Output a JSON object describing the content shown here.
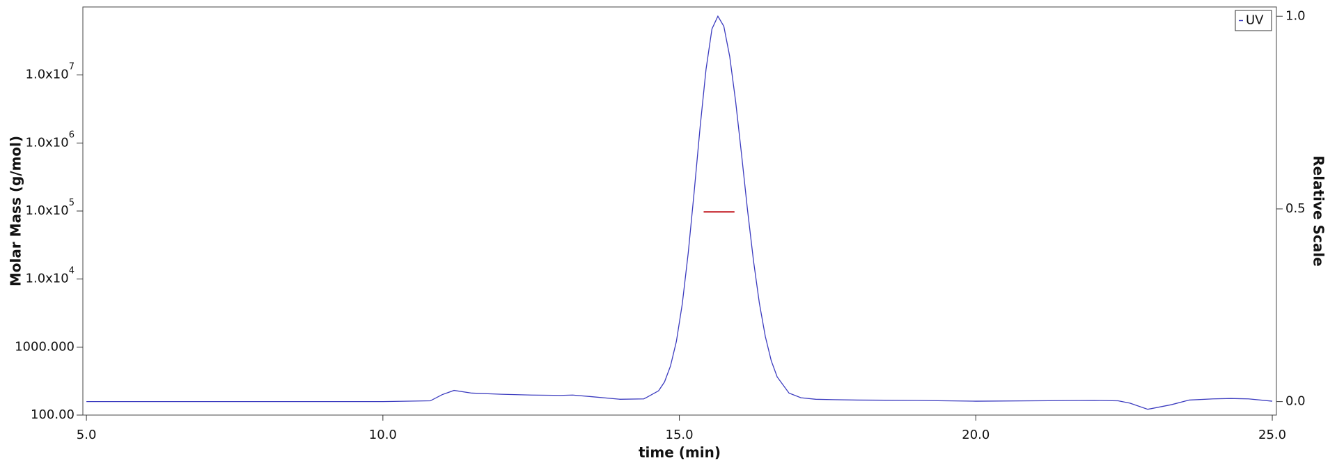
{
  "chart_data": {
    "type": "line",
    "xlabel": "time (min)",
    "ylabel": "Molar Mass (g/mol)",
    "y2label": "Relative Scale",
    "xlim": [
      4.94,
      25.07
    ],
    "xticks": [
      {
        "value": 5,
        "label": "5.0"
      },
      {
        "value": 10,
        "label": "10.0"
      },
      {
        "value": 15,
        "label": "15.0"
      },
      {
        "value": 20,
        "label": "20.0"
      },
      {
        "value": 25,
        "label": "25.0"
      }
    ],
    "ylim": [
      100,
      100000000
    ],
    "yscale": "log",
    "yticks": [
      {
        "value": 100,
        "label": "100.00"
      },
      {
        "value": 1000,
        "label": "1000.000"
      },
      {
        "value": 10000,
        "label": "1.0x10",
        "sup": "4"
      },
      {
        "value": 100000,
        "label": "1.0x10",
        "sup": "5"
      },
      {
        "value": 1000000,
        "label": "1.0x10",
        "sup": "6"
      },
      {
        "value": 10000000,
        "label": "1.0x10",
        "sup": "7"
      }
    ],
    "y2lim": [
      -0.035,
      1.024
    ],
    "y2ticks": [
      {
        "value": 0,
        "label": "0.0"
      },
      {
        "value": 0.5,
        "label": "0.5"
      },
      {
        "value": 1,
        "label": "1.0"
      }
    ],
    "legend": "upper right",
    "series": [
      {
        "name": "UV",
        "color": "#3b3bbf",
        "axis": "y2",
        "x": [
          5,
          10,
          10.8,
          11.0,
          11.2,
          11.5,
          12,
          12.5,
          13,
          13.2,
          13.5,
          14,
          14.4,
          14.45,
          14.65,
          14.75,
          14.85,
          14.95,
          15.05,
          15.15,
          15.25,
          15.35,
          15.45,
          15.55,
          15.65,
          15.75,
          15.85,
          15.95,
          16.05,
          16.15,
          16.25,
          16.35,
          16.45,
          16.55,
          16.65,
          16.85,
          17.05,
          17.3,
          17.6,
          18,
          19,
          20,
          21,
          22,
          22.4,
          22.6,
          22.9,
          23.3,
          23.6,
          24,
          24.3,
          24.6,
          25
        ],
        "values": [
          0.0,
          0.0,
          0.002,
          0.018,
          0.029,
          0.022,
          0.019,
          0.017,
          0.016,
          0.017,
          0.013,
          0.006,
          0.007,
          0.011,
          0.028,
          0.051,
          0.092,
          0.156,
          0.254,
          0.386,
          0.544,
          0.712,
          0.862,
          0.967,
          1.0,
          0.974,
          0.895,
          0.778,
          0.64,
          0.497,
          0.366,
          0.255,
          0.169,
          0.106,
          0.064,
          0.022,
          0.01,
          0.006,
          0.005,
          0.004,
          0.003,
          0.001,
          0.002,
          0.003,
          0.002,
          -0.004,
          -0.02,
          -0.008,
          0.004,
          0.007,
          0.008,
          0.007,
          0.001
        ]
      },
      {
        "color": "#c0141c",
        "axis": "y",
        "x": [
          15.41,
          15.93
        ],
        "values": [
          97000,
          97000
        ]
      }
    ]
  }
}
